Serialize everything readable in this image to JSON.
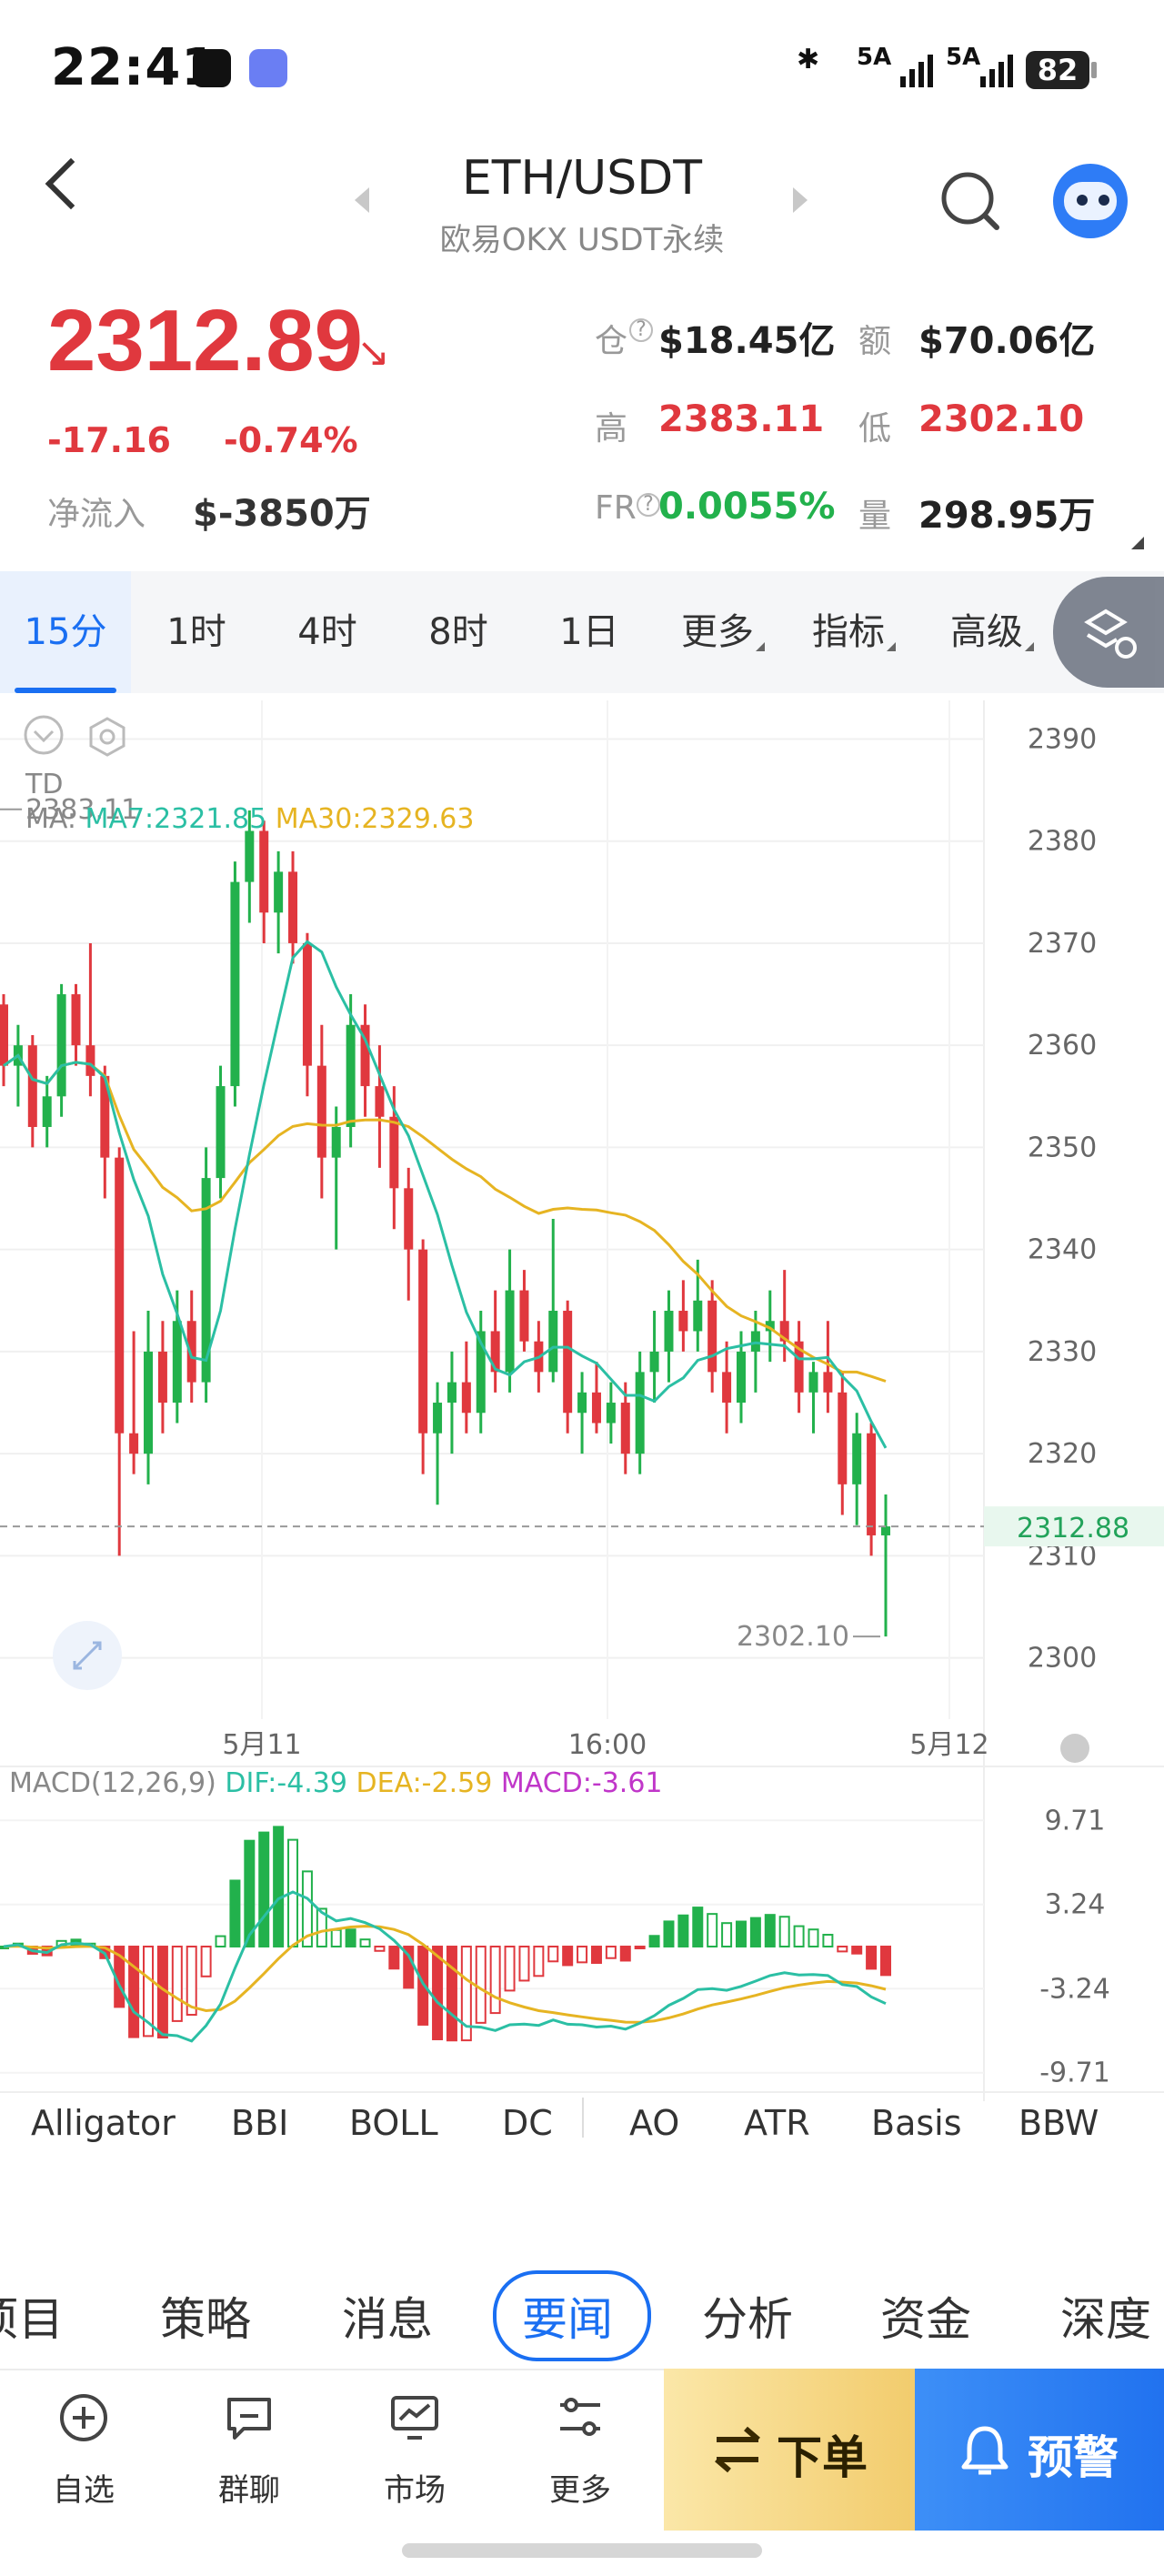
{
  "status_bar": {
    "time": "22:41",
    "net1": "5A",
    "net2": "5A",
    "battery": "82",
    "icons": [
      "app-icon-1",
      "app-icon-2",
      "bluetooth-icon",
      "signal-icon",
      "signal-icon",
      "battery-icon"
    ]
  },
  "header": {
    "pair": "ETH/USDT",
    "subtitle": "欧易OKX USDT永续"
  },
  "price": {
    "last": "2312.89",
    "change": "-17.16",
    "change_pct": "-0.74%",
    "inflow_label": "净流入",
    "inflow_value": "$-3850万"
  },
  "stats": {
    "oi_label": "仓",
    "oi_value": "$18.45亿",
    "amount_label": "额",
    "amount_value": "$70.06亿",
    "high_label": "高",
    "high_value": "2383.11",
    "low_label": "低",
    "low_value": "2302.10",
    "fr_label": "FR",
    "fr_value": "0.0055%",
    "vol_label": "量",
    "vol_value": "298.95万"
  },
  "intervals": [
    "15分",
    "1时",
    "4时",
    "8时",
    "1日",
    "更多",
    "指标",
    "高级"
  ],
  "active_interval": "15分",
  "chart_labels": {
    "td": "TD",
    "ma_prefix": "MA:",
    "ma7": "MA7:2321.85",
    "ma30": "MA30:2329.63",
    "high_marker": "2383.11",
    "low_marker": "2302.10",
    "current_price": "2312.88",
    "macd_prefix": "MACD(12,26,9)",
    "dif": "DIF:-4.39",
    "dea": "DEA:-2.59",
    "macd": "MACD:-3.61"
  },
  "colors": {
    "up": "#22b14c",
    "down": "#e0383e",
    "ma7": "#2bbfa4",
    "ma30": "#e6b422",
    "macd_label": "#c036c9",
    "accent": "#1a6ff2"
  },
  "chart_data": [
    {
      "type": "candlestick",
      "title": "",
      "y_ticks": [
        2390,
        2380,
        2370,
        2360,
        2350,
        2340,
        2330,
        2320,
        2310,
        2300
      ],
      "x_ticks": [
        "5月11",
        "16:00",
        "5月12"
      ],
      "ylim": [
        2294,
        2392
      ],
      "grid": true,
      "high": 2383.11,
      "low": 2302.1,
      "last": 2312.88,
      "candles": [
        [
          2364,
          2365,
          2356,
          2358
        ],
        [
          2358,
          2362,
          2354,
          2360
        ],
        [
          2360,
          2361,
          2350,
          2352
        ],
        [
          2352,
          2357,
          2350,
          2355
        ],
        [
          2355,
          2366,
          2353,
          2365
        ],
        [
          2365,
          2366,
          2358,
          2360
        ],
        [
          2360,
          2370,
          2355,
          2357
        ],
        [
          2357,
          2358,
          2345,
          2349
        ],
        [
          2349,
          2350,
          2310,
          2322
        ],
        [
          2322,
          2332,
          2318,
          2320
        ],
        [
          2320,
          2334,
          2317,
          2330
        ],
        [
          2330,
          2333,
          2322,
          2325
        ],
        [
          2325,
          2336,
          2323,
          2333
        ],
        [
          2333,
          2336,
          2325,
          2327
        ],
        [
          2327,
          2350,
          2325,
          2347
        ],
        [
          2347,
          2358,
          2345,
          2356
        ],
        [
          2356,
          2378,
          2354,
          2376
        ],
        [
          2376,
          2383,
          2372,
          2381
        ],
        [
          2381,
          2382,
          2370,
          2373
        ],
        [
          2373,
          2379,
          2369,
          2377
        ],
        [
          2377,
          2379,
          2368,
          2370
        ],
        [
          2370,
          2371,
          2355,
          2358
        ],
        [
          2358,
          2362,
          2345,
          2349
        ],
        [
          2349,
          2354,
          2340,
          2352
        ],
        [
          2352,
          2365,
          2350,
          2362
        ],
        [
          2362,
          2364,
          2353,
          2356
        ],
        [
          2356,
          2360,
          2348,
          2353
        ],
        [
          2353,
          2356,
          2342,
          2346
        ],
        [
          2346,
          2348,
          2335,
          2340
        ],
        [
          2340,
          2341,
          2318,
          2322
        ],
        [
          2322,
          2327,
          2315,
          2325
        ],
        [
          2325,
          2330,
          2320,
          2327
        ],
        [
          2327,
          2331,
          2322,
          2324
        ],
        [
          2324,
          2334,
          2322,
          2332
        ],
        [
          2332,
          2336,
          2326,
          2328
        ],
        [
          2328,
          2340,
          2326,
          2336
        ],
        [
          2336,
          2338,
          2330,
          2331
        ],
        [
          2331,
          2333,
          2326,
          2328
        ],
        [
          2328,
          2343,
          2327,
          2334
        ],
        [
          2334,
          2335,
          2322,
          2324
        ],
        [
          2324,
          2328,
          2320,
          2326
        ],
        [
          2326,
          2329,
          2322,
          2323
        ],
        [
          2323,
          2327,
          2321,
          2325
        ],
        [
          2325,
          2327,
          2318,
          2320
        ],
        [
          2320,
          2330,
          2318,
          2328
        ],
        [
          2328,
          2334,
          2325,
          2330
        ],
        [
          2330,
          2336,
          2327,
          2334
        ],
        [
          2334,
          2337,
          2330,
          2332
        ],
        [
          2332,
          2339,
          2330,
          2335
        ],
        [
          2335,
          2337,
          2326,
          2328
        ],
        [
          2328,
          2331,
          2322,
          2325
        ],
        [
          2325,
          2332,
          2323,
          2330
        ],
        [
          2330,
          2334,
          2326,
          2332
        ],
        [
          2332,
          2336,
          2329,
          2333
        ],
        [
          2333,
          2338,
          2329,
          2331
        ],
        [
          2331,
          2333,
          2324,
          2326
        ],
        [
          2326,
          2329,
          2322,
          2328
        ],
        [
          2328,
          2333,
          2324,
          2326
        ],
        [
          2326,
          2328,
          2314,
          2317
        ],
        [
          2317,
          2324,
          2313,
          2322
        ],
        [
          2322,
          2323,
          2310,
          2312
        ],
        [
          2312,
          2316,
          2302.1,
          2312.88
        ]
      ]
    },
    {
      "type": "macd",
      "y_ticks": [
        9.71,
        3.24,
        -3.24,
        -9.71
      ],
      "ylim": [
        -10.5,
        10.5
      ],
      "dif_last": -4.39,
      "dea_last": -2.59,
      "macd_last": -3.61
    }
  ],
  "indicator_tabs": [
    "Alligator",
    "BBI",
    "BOLL",
    "DC",
    "AO",
    "ATR",
    "Basis",
    "BBW"
  ],
  "bottom_tabs": [
    "项目",
    "策略",
    "消息",
    "要闻",
    "分析",
    "资金",
    "深度"
  ],
  "active_bottom_tab": "要闻",
  "bottom_nav": {
    "items": [
      {
        "label": "自选",
        "icon": "plus-circle-icon"
      },
      {
        "label": "群聊",
        "icon": "chat-icon"
      },
      {
        "label": "市场",
        "icon": "monitor-chart-icon"
      },
      {
        "label": "更多",
        "icon": "sliders-icon"
      }
    ],
    "order_label": "下单",
    "alert_label": "预警"
  }
}
